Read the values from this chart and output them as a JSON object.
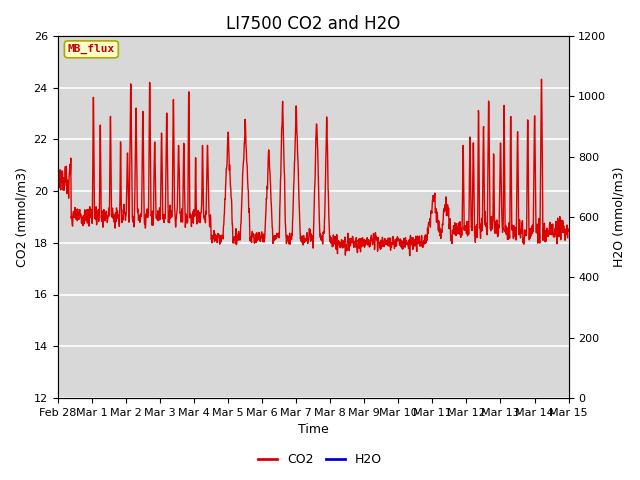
{
  "title": "LI7500 CO2 and H2O",
  "xlabel": "Time",
  "ylabel_left": "CO2 (mmol/m3)",
  "ylabel_right": "H2O (mmol/m3)",
  "ylim_left": [
    12,
    26
  ],
  "ylim_right": [
    0,
    1200
  ],
  "bg_color": "#d8d8d8",
  "fig_bg_color": "#ffffff",
  "co2_color": "#dd0000",
  "h2o_color": "#0000cc",
  "annotation_text": "MB_flux",
  "annotation_bg": "#ffffcc",
  "annotation_border": "#aaa800",
  "legend_co2": "CO2",
  "legend_h2o": "H2O",
  "xtick_labels": [
    "Feb 28",
    "Mar 1",
    "Mar 2",
    "Mar 3",
    "Mar 4",
    "Mar 5",
    "Mar 6",
    "Mar 7",
    "Mar 8",
    "Mar 9",
    "Mar 10",
    "Mar 11",
    "Mar 12",
    "Mar 13",
    "Mar 14",
    "Mar 15"
  ],
  "xtick_positions": [
    0,
    1,
    2,
    3,
    4,
    5,
    6,
    7,
    8,
    9,
    10,
    11,
    12,
    13,
    14,
    15
  ],
  "title_fontsize": 12,
  "label_fontsize": 9,
  "tick_fontsize": 8,
  "linewidth": 1.0
}
